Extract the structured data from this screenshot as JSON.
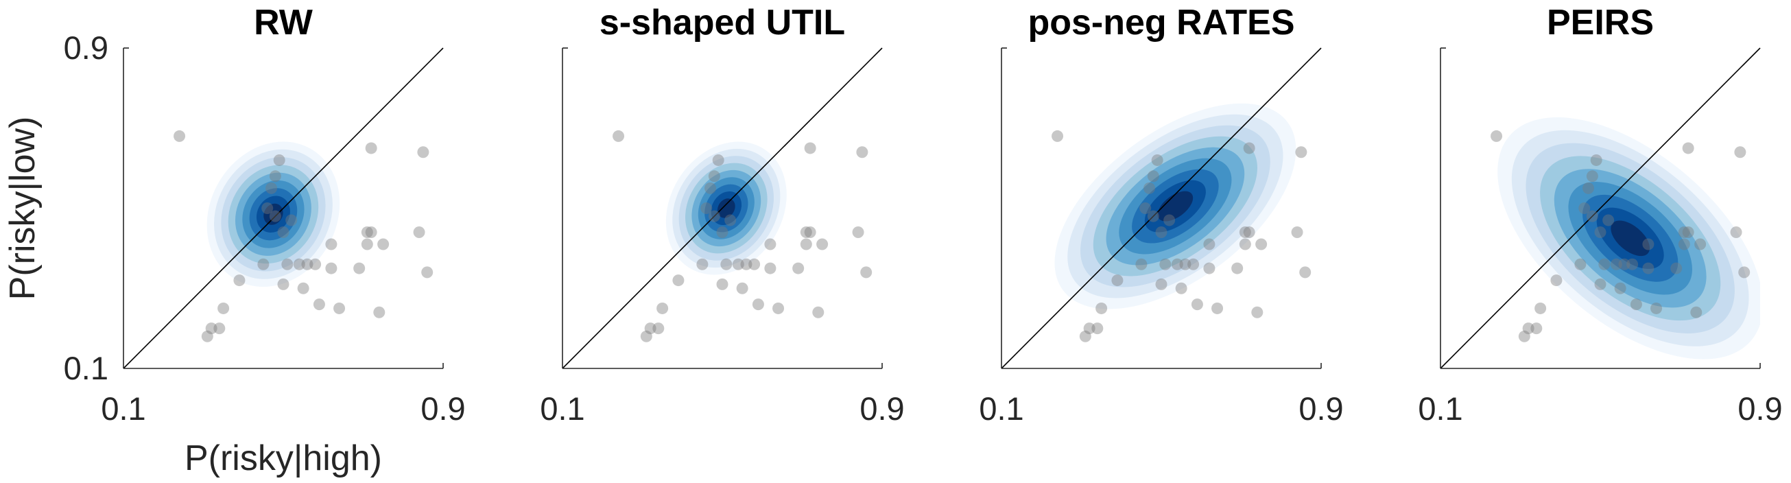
{
  "chart_data": [
    {
      "type": "scatter",
      "title": "RW",
      "xlabel": "P(risky|high)",
      "ylabel": "P(risky|low)",
      "xlim": [
        0.1,
        0.9
      ],
      "ylim": [
        0.1,
        0.9
      ],
      "xticks": [
        "0.1",
        "0.9"
      ],
      "yticks": [
        "0.1",
        "0.9"
      ],
      "identity_line": true,
      "grid": false,
      "density": {
        "cx": 0.475,
        "cy": 0.485,
        "sx": 0.055,
        "sy": 0.06,
        "rho": 0.15,
        "levels": 9
      },
      "points": [
        [
          0.24,
          0.68
        ],
        [
          0.49,
          0.62
        ],
        [
          0.72,
          0.65
        ],
        [
          0.85,
          0.64
        ],
        [
          0.48,
          0.58
        ],
        [
          0.47,
          0.55
        ],
        [
          0.46,
          0.5
        ],
        [
          0.48,
          0.48
        ],
        [
          0.52,
          0.47
        ],
        [
          0.62,
          0.41
        ],
        [
          0.71,
          0.44
        ],
        [
          0.72,
          0.44
        ],
        [
          0.75,
          0.41
        ],
        [
          0.84,
          0.44
        ],
        [
          0.71,
          0.41
        ],
        [
          0.5,
          0.44
        ],
        [
          0.56,
          0.36
        ],
        [
          0.58,
          0.36
        ],
        [
          0.45,
          0.36
        ],
        [
          0.54,
          0.36
        ],
        [
          0.51,
          0.36
        ],
        [
          0.39,
          0.32
        ],
        [
          0.5,
          0.31
        ],
        [
          0.62,
          0.35
        ],
        [
          0.69,
          0.35
        ],
        [
          0.86,
          0.34
        ],
        [
          0.55,
          0.3
        ],
        [
          0.59,
          0.26
        ],
        [
          0.64,
          0.25
        ],
        [
          0.74,
          0.24
        ],
        [
          0.34,
          0.2
        ],
        [
          0.32,
          0.2
        ],
        [
          0.35,
          0.25
        ],
        [
          0.31,
          0.18
        ]
      ]
    },
    {
      "type": "scatter",
      "title": "s-shaped UTIL",
      "xlabel": "",
      "ylabel": "",
      "xlim": [
        0.1,
        0.9
      ],
      "ylim": [
        0.1,
        0.9
      ],
      "xticks": [
        "0.1",
        "0.9"
      ],
      "yticks": [],
      "identity_line": true,
      "grid": false,
      "density": {
        "cx": 0.51,
        "cy": 0.5,
        "sx": 0.05,
        "sy": 0.055,
        "rho": 0.2,
        "levels": 9
      },
      "points": [
        [
          0.24,
          0.68
        ],
        [
          0.49,
          0.62
        ],
        [
          0.72,
          0.65
        ],
        [
          0.85,
          0.64
        ],
        [
          0.48,
          0.58
        ],
        [
          0.47,
          0.55
        ],
        [
          0.46,
          0.5
        ],
        [
          0.48,
          0.48
        ],
        [
          0.52,
          0.47
        ],
        [
          0.62,
          0.41
        ],
        [
          0.71,
          0.44
        ],
        [
          0.72,
          0.44
        ],
        [
          0.75,
          0.41
        ],
        [
          0.84,
          0.44
        ],
        [
          0.71,
          0.41
        ],
        [
          0.5,
          0.44
        ],
        [
          0.56,
          0.36
        ],
        [
          0.58,
          0.36
        ],
        [
          0.45,
          0.36
        ],
        [
          0.54,
          0.36
        ],
        [
          0.51,
          0.36
        ],
        [
          0.39,
          0.32
        ],
        [
          0.5,
          0.31
        ],
        [
          0.62,
          0.35
        ],
        [
          0.69,
          0.35
        ],
        [
          0.86,
          0.34
        ],
        [
          0.55,
          0.3
        ],
        [
          0.59,
          0.26
        ],
        [
          0.64,
          0.25
        ],
        [
          0.74,
          0.24
        ],
        [
          0.34,
          0.2
        ],
        [
          0.32,
          0.2
        ],
        [
          0.35,
          0.25
        ],
        [
          0.31,
          0.18
        ]
      ]
    },
    {
      "type": "scatter",
      "title": "pos-neg RATES",
      "xlabel": "",
      "ylabel": "",
      "xlim": [
        0.1,
        0.9
      ],
      "ylim": [
        0.1,
        0.9
      ],
      "xticks": [
        "0.1",
        "0.9"
      ],
      "yticks": [],
      "identity_line": true,
      "grid": false,
      "density": {
        "cx": 0.535,
        "cy": 0.505,
        "sx": 0.1,
        "sy": 0.085,
        "rho": 0.55,
        "levels": 9
      },
      "points": [
        [
          0.24,
          0.68
        ],
        [
          0.49,
          0.62
        ],
        [
          0.72,
          0.65
        ],
        [
          0.85,
          0.64
        ],
        [
          0.48,
          0.58
        ],
        [
          0.47,
          0.55
        ],
        [
          0.46,
          0.5
        ],
        [
          0.48,
          0.48
        ],
        [
          0.52,
          0.47
        ],
        [
          0.62,
          0.41
        ],
        [
          0.71,
          0.44
        ],
        [
          0.72,
          0.44
        ],
        [
          0.75,
          0.41
        ],
        [
          0.84,
          0.44
        ],
        [
          0.71,
          0.41
        ],
        [
          0.5,
          0.44
        ],
        [
          0.56,
          0.36
        ],
        [
          0.58,
          0.36
        ],
        [
          0.45,
          0.36
        ],
        [
          0.54,
          0.36
        ],
        [
          0.51,
          0.36
        ],
        [
          0.39,
          0.32
        ],
        [
          0.5,
          0.31
        ],
        [
          0.62,
          0.35
        ],
        [
          0.69,
          0.35
        ],
        [
          0.86,
          0.34
        ],
        [
          0.55,
          0.3
        ],
        [
          0.59,
          0.26
        ],
        [
          0.64,
          0.25
        ],
        [
          0.74,
          0.24
        ],
        [
          0.34,
          0.2
        ],
        [
          0.32,
          0.2
        ],
        [
          0.35,
          0.25
        ],
        [
          0.31,
          0.18
        ]
      ]
    },
    {
      "type": "scatter",
      "title": "PEIRS",
      "xlabel": "",
      "ylabel": "",
      "xlim": [
        0.1,
        0.9
      ],
      "ylim": [
        0.1,
        0.9
      ],
      "xticks": [
        "0.1",
        "0.9"
      ],
      "yticks": [],
      "identity_line": true,
      "grid": false,
      "density": {
        "cx": 0.575,
        "cy": 0.425,
        "sx": 0.11,
        "sy": 0.1,
        "rho": -0.55,
        "levels": 9
      },
      "points": [
        [
          0.24,
          0.68
        ],
        [
          0.49,
          0.62
        ],
        [
          0.72,
          0.65
        ],
        [
          0.85,
          0.64
        ],
        [
          0.48,
          0.58
        ],
        [
          0.47,
          0.55
        ],
        [
          0.46,
          0.5
        ],
        [
          0.48,
          0.48
        ],
        [
          0.52,
          0.47
        ],
        [
          0.62,
          0.41
        ],
        [
          0.71,
          0.44
        ],
        [
          0.72,
          0.44
        ],
        [
          0.75,
          0.41
        ],
        [
          0.84,
          0.44
        ],
        [
          0.71,
          0.41
        ],
        [
          0.5,
          0.44
        ],
        [
          0.56,
          0.36
        ],
        [
          0.58,
          0.36
        ],
        [
          0.45,
          0.36
        ],
        [
          0.54,
          0.36
        ],
        [
          0.51,
          0.36
        ],
        [
          0.39,
          0.32
        ],
        [
          0.5,
          0.31
        ],
        [
          0.62,
          0.35
        ],
        [
          0.69,
          0.35
        ],
        [
          0.86,
          0.34
        ],
        [
          0.55,
          0.3
        ],
        [
          0.59,
          0.26
        ],
        [
          0.64,
          0.25
        ],
        [
          0.74,
          0.24
        ],
        [
          0.34,
          0.2
        ],
        [
          0.32,
          0.2
        ],
        [
          0.35,
          0.25
        ],
        [
          0.31,
          0.18
        ]
      ]
    }
  ],
  "colors": {
    "density": [
      "#f1f7fd",
      "#dce9f6",
      "#c6dbef",
      "#9ecae1",
      "#6baed6",
      "#4292c6",
      "#2171b5",
      "#08519c",
      "#08306b"
    ],
    "points": "#7a7a7a",
    "axis": "#262626",
    "identity_line": "#000000"
  }
}
